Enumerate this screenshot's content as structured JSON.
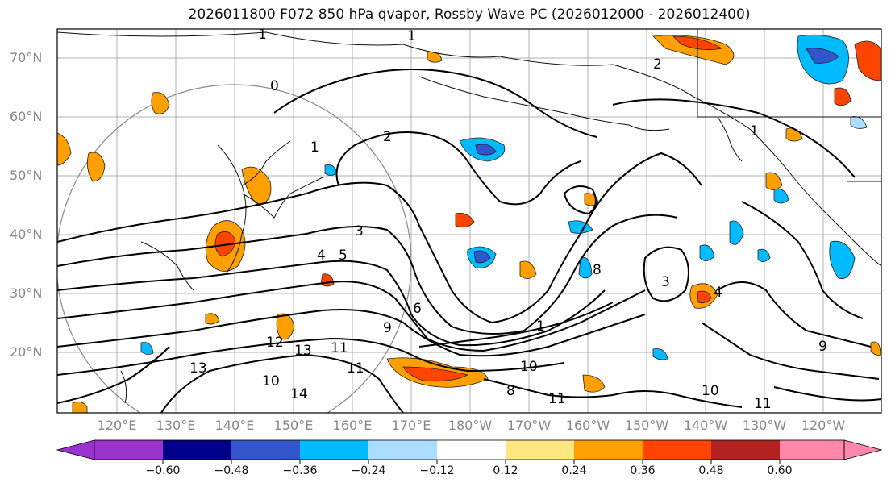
{
  "title": "2026011800 F072 850 hPa qvapor, Rossby Wave PC (2026012000 - 2026012400)",
  "map": {
    "lat_labels": [
      "70°N",
      "60°N",
      "50°N",
      "40°N",
      "30°N",
      "20°N"
    ],
    "lon_labels": [
      "120°E",
      "130°E",
      "140°E",
      "150°E",
      "160°E",
      "170°E",
      "180°W",
      "170°W",
      "160°W",
      "150°W",
      "140°W",
      "130°W",
      "120°W"
    ],
    "contour_labels": [
      "1",
      "1",
      "2",
      "0",
      "1",
      "2",
      "3",
      "4",
      "5",
      "6",
      "3",
      "8",
      "9",
      "10",
      "11",
      "12",
      "13",
      "13",
      "14",
      "11",
      "10",
      "11",
      "9",
      "8",
      "10",
      "11",
      "4",
      "1",
      "1"
    ]
  },
  "colorbar": {
    "colors": [
      "#9933cc",
      "#000088",
      "#3355cc",
      "#00bbff",
      "#aaddff",
      "#ffffff",
      "#ffe680",
      "#ffa000",
      "#ff4400",
      "#b22222",
      "#ff88aa"
    ],
    "tick_labels": [
      "−0.60",
      "−0.48",
      "−0.36",
      "−0.24",
      "−0.12",
      "0.12",
      "0.24",
      "0.36",
      "0.48",
      "0.60"
    ]
  }
}
